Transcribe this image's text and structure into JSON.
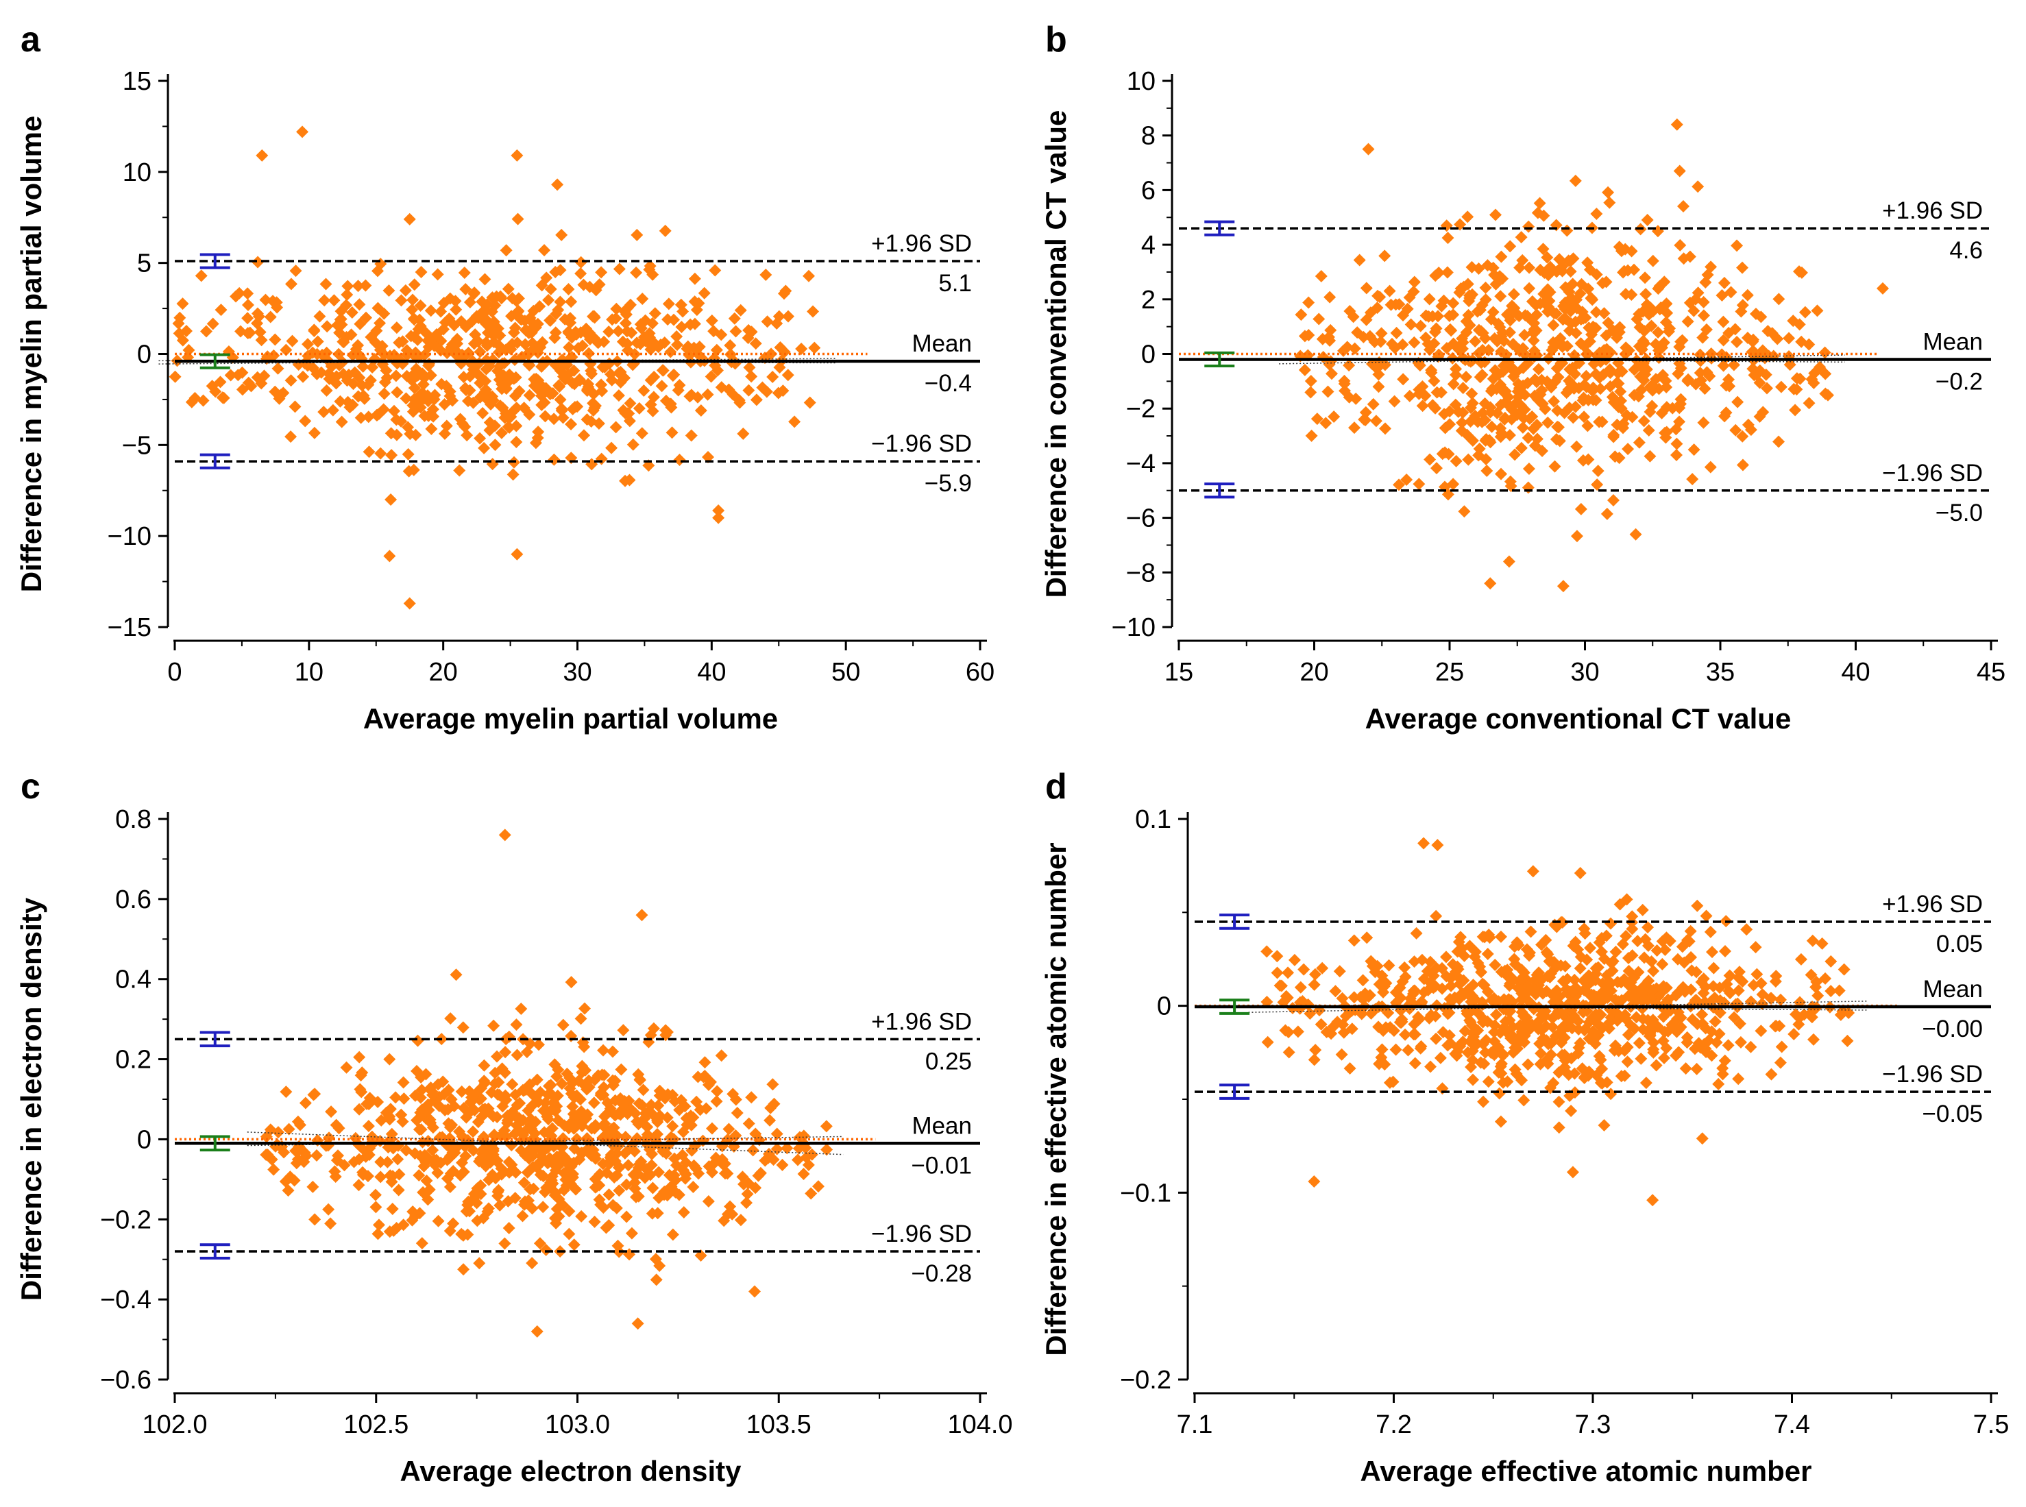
{
  "figure": {
    "colors": {
      "points": "#FF7F0E",
      "ci_upper_lower": "#1F1FBF",
      "ci_mean": "#1A7F1A",
      "zero_line": "#FF6600",
      "lines": "#000000"
    }
  },
  "chart_data": [
    {
      "panel": "a",
      "type": "scatter",
      "xlabel": "Average myelin partial volume",
      "ylabel": "Difference in myelin partial volume",
      "xlim": [
        0,
        60
      ],
      "ylim": [
        -15,
        15
      ],
      "xticks": [
        "0",
        "10",
        "20",
        "30",
        "40",
        "50",
        "60"
      ],
      "yticks": [
        "15",
        "10",
        "5",
        "0",
        "−5",
        "−10",
        "−15"
      ],
      "mean": -0.4,
      "upper_loa": 5.1,
      "lower_loa": -5.9,
      "upper_label": "+1.96 SD",
      "upper_value": "5.1",
      "mean_label": "Mean",
      "mean_value": "−0.4",
      "lower_label": "−1.96 SD",
      "lower_value": "−5.9",
      "ci_x": 3.0,
      "regression_slope": 0.005,
      "scatter_x_range": [
        0,
        48
      ],
      "scatter_sd": 2.7,
      "n_points": 750,
      "seed": 11,
      "extreme_points": [
        [
          9.5,
          12.2
        ],
        [
          6.5,
          10.9
        ],
        [
          25.5,
          10.9
        ],
        [
          28.5,
          9.3
        ],
        [
          17.5,
          7.4
        ],
        [
          16,
          -11.1
        ],
        [
          25.5,
          -11
        ],
        [
          17.5,
          -13.7
        ],
        [
          40.5,
          -8.6
        ],
        [
          40.5,
          -9
        ]
      ]
    },
    {
      "panel": "b",
      "type": "scatter",
      "xlabel": "Average conventional CT value",
      "ylabel": "Difference in conventional CT value",
      "xlim": [
        15,
        45
      ],
      "ylim": [
        -10,
        10
      ],
      "xticks": [
        "15",
        "20",
        "25",
        "30",
        "35",
        "40",
        "45"
      ],
      "yticks": [
        "10",
        "8",
        "6",
        "4",
        "2",
        "0",
        "−2",
        "−4",
        "−6",
        "−8",
        "−10"
      ],
      "mean": -0.2,
      "upper_loa": 4.6,
      "lower_loa": -5.0,
      "upper_label": "+1.96 SD",
      "upper_value": "4.6",
      "mean_label": "Mean",
      "mean_value": "−0.2",
      "lower_label": "−1.96 SD",
      "lower_value": "−5.0",
      "ci_x": 16.5,
      "regression_slope": 0.008,
      "scatter_x_range": [
        19.3,
        39
      ],
      "scatter_sd": 2.4,
      "n_points": 750,
      "seed": 23,
      "extreme_points": [
        [
          33.4,
          8.4
        ],
        [
          22,
          7.5
        ],
        [
          26.5,
          -8.4
        ],
        [
          29.2,
          -8.5
        ],
        [
          27.2,
          -7.6
        ],
        [
          33.5,
          6.7
        ],
        [
          41,
          2.4
        ]
      ]
    },
    {
      "panel": "c",
      "type": "scatter",
      "xlabel": "Average electron density",
      "ylabel": "Difference in electron density",
      "xlim": [
        102.0,
        104.0
      ],
      "ylim": [
        -0.6,
        0.8
      ],
      "xticks": [
        "102.0",
        "102.5",
        "103.0",
        "103.5",
        "104.0"
      ],
      "yticks": [
        "0.8",
        "0.6",
        "0.4",
        "0.2",
        "0",
        "−0.2",
        "−0.4",
        "−0.6"
      ],
      "mean": -0.01,
      "upper_loa": 0.25,
      "lower_loa": -0.28,
      "upper_label": "+1.96 SD",
      "upper_value": "0.25",
      "mean_label": "Mean",
      "mean_value": "−0.01",
      "lower_label": "−1.96 SD",
      "lower_value": "−0.28",
      "ci_x": 102.1,
      "regression_slope": -0.02,
      "scatter_x_range": [
        102.22,
        103.62
      ],
      "scatter_sd": 0.13,
      "n_points": 800,
      "seed": 37,
      "extreme_points": [
        [
          102.82,
          0.76
        ],
        [
          103.16,
          0.56
        ],
        [
          102.9,
          -0.48
        ],
        [
          103.15,
          -0.46
        ],
        [
          103.44,
          -0.38
        ]
      ]
    },
    {
      "panel": "d",
      "type": "scatter",
      "xlabel": "Average effective atomic number",
      "ylabel": "Difference in effective atomic number",
      "xlim": [
        7.1,
        7.5
      ],
      "ylim": [
        -0.2,
        0.1
      ],
      "xticks": [
        "7.1",
        "7.2",
        "7.3",
        "7.4",
        "7.5"
      ],
      "yticks": [
        "0.1",
        "0",
        "−0.1",
        "−0.2"
      ],
      "mean": -0.0005,
      "upper_loa": 0.045,
      "lower_loa": -0.046,
      "upper_label": "+1.96 SD",
      "upper_value": "0.05",
      "mean_label": "Mean",
      "mean_value": "−0.00",
      "lower_label": "−1.96 SD",
      "lower_value": "−0.05",
      "ci_x": 7.12,
      "regression_slope": 0.01,
      "scatter_x_range": [
        7.135,
        7.43
      ],
      "scatter_sd": 0.022,
      "n_points": 800,
      "seed": 53,
      "extreme_points": [
        [
          7.215,
          0.087
        ],
        [
          7.222,
          0.086
        ],
        [
          7.27,
          0.072
        ],
        [
          7.16,
          -0.094
        ],
        [
          7.29,
          -0.089
        ],
        [
          7.33,
          -0.104
        ],
        [
          7.355,
          -0.071
        ]
      ]
    }
  ]
}
